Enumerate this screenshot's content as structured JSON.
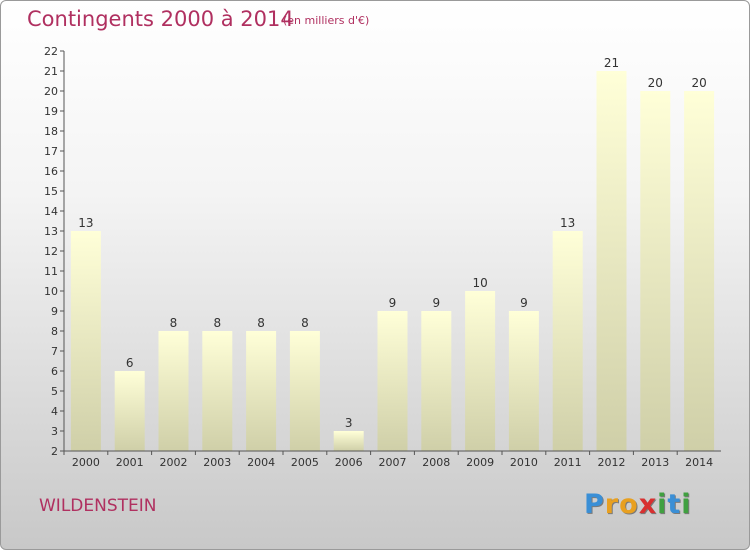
{
  "header": {
    "title": "Contingents 2000 à 2014",
    "subtitle": "(en milliers d'€)"
  },
  "footer": {
    "town": "WILDENSTEIN",
    "logo": {
      "letters": [
        "P",
        "r",
        "o",
        "x",
        "i",
        "t",
        "i"
      ],
      "colors": [
        "#3a8fd6",
        "#e8a020",
        "#e8a020",
        "#d83030",
        "#40a040",
        "#3a8fd6",
        "#40a040"
      ]
    }
  },
  "chart_data": {
    "type": "bar",
    "title": "Contingents 2000 à 2014",
    "subtitle": "(en milliers d'€)",
    "categories": [
      "2000",
      "2001",
      "2002",
      "2003",
      "2004",
      "2005",
      "2006",
      "2007",
      "2008",
      "2009",
      "2010",
      "2011",
      "2012",
      "2013",
      "2014"
    ],
    "values": [
      13,
      6,
      8,
      8,
      8,
      8,
      3,
      9,
      9,
      10,
      9,
      13,
      21,
      20,
      20
    ],
    "ylim": [
      2,
      22
    ],
    "yticks": [
      2,
      3,
      4,
      5,
      6,
      7,
      8,
      9,
      10,
      11,
      12,
      13,
      14,
      15,
      16,
      17,
      18,
      19,
      20,
      21,
      22
    ],
    "grid": false,
    "colors": {
      "bar_top": "#ffffd8",
      "bar_bottom": "#cfcfa8",
      "axis": "#555555"
    }
  }
}
